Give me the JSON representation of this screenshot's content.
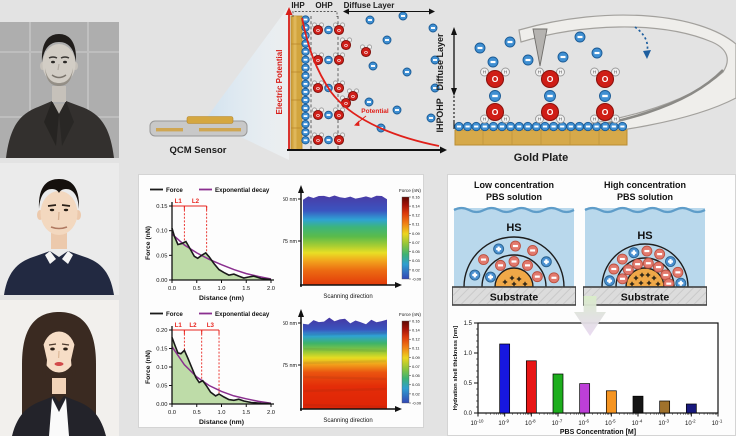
{
  "page": {
    "background": "#e3e3e3",
    "card_background": "#fdfdfd"
  },
  "portraits": [
    {
      "id": "portrait-top",
      "description": "black-and-white portrait, male researcher in dark blazer"
    },
    {
      "id": "portrait-middle",
      "description": "color portrait, male researcher in navy sweater"
    },
    {
      "id": "portrait-bottom",
      "description": "color portrait, female researcher with long dark hair"
    }
  ],
  "edl_panel": {
    "sensor_label": "QCM Sensor",
    "axis_label": "Electric Potential",
    "curve_label": "Potential",
    "zone_labels": {
      "ihp": "IHP",
      "ohp": "OHP",
      "diffuse": "Diffuse Layer"
    }
  },
  "afm_panel": {
    "depth_labels": {
      "ihp": "IHP",
      "ohp": "OHP",
      "diffuse": "Diffuse Layer"
    },
    "plate_label": "Gold Plate"
  },
  "hydration_panel": {
    "low": {
      "title_line1": "Low concentration",
      "title_line2": "PBS solution"
    },
    "high": {
      "title_line1": "High concentration",
      "title_line2": "PBS solution"
    },
    "shell_label": "HS",
    "substrate_label": "Substrate",
    "ion_colors": {
      "anion": "#e2796d",
      "anion_edge": "#b9503f",
      "cation": "#4a90d0",
      "cation_edge": "#2a628f",
      "core": "#f0a848"
    }
  },
  "chart_data": [
    {
      "id": "force-distance-top",
      "type": "line",
      "xlabel": "Distance (nm)",
      "ylabel": "Force (nN)",
      "xlim": [
        0.0,
        2.0
      ],
      "ylim": [
        0.0,
        0.15
      ],
      "xticks": [
        "0.0",
        "0.5",
        "1.0",
        "1.5",
        "2.0"
      ],
      "yticks": [
        "0.00",
        "0.05",
        "0.10",
        "0.15"
      ],
      "legend": [
        {
          "label": "Force",
          "color": "#1a1a1a"
        },
        {
          "label": "Exponential decay",
          "color": "#8a2f8f"
        }
      ],
      "layer_markers": {
        "labels": [
          "L1",
          "L2"
        ],
        "x": [
          0.25,
          0.7
        ],
        "color": "#e8251f"
      },
      "series": [
        {
          "name": "Force",
          "color": "#1a1a1a",
          "fill": "#b7d89f",
          "x": [
            0,
            0.05,
            0.12,
            0.2,
            0.28,
            0.35,
            0.45,
            0.52,
            0.6,
            0.68,
            0.75,
            0.85,
            0.95,
            1.05,
            1.15,
            1.25,
            1.35,
            1.45,
            1.55,
            1.65,
            1.8,
            2.0
          ],
          "y": [
            0.105,
            0.088,
            0.072,
            0.074,
            0.078,
            0.066,
            0.048,
            0.044,
            0.05,
            0.055,
            0.047,
            0.033,
            0.021,
            0.015,
            0.01,
            0.012,
            0.008,
            0.004,
            0.006,
            0.008,
            0.003,
            0.001
          ]
        },
        {
          "name": "Exponential decay",
          "color": "#8a2f8f",
          "x": [
            0,
            0.25,
            0.5,
            0.75,
            1.0,
            1.25,
            1.5,
            1.75,
            2.0
          ],
          "y": [
            0.093,
            0.071,
            0.055,
            0.042,
            0.031,
            0.021,
            0.013,
            0.007,
            0.002
          ]
        }
      ]
    },
    {
      "id": "force-map-top",
      "type": "heatmap",
      "xlabel": "Scanning direction",
      "y_axis_ticks": [
        "1.50 nm",
        "0.75 nm"
      ],
      "colorbar": {
        "title": "Force (nN)",
        "ticks": [
          "0.16",
          "0.14",
          "0.12",
          "0.11",
          "0.09",
          "0.07",
          "0.05",
          "0.03",
          "0.02",
          "-0.00"
        ]
      },
      "band_stops": [
        [
          0,
          "#4a3ba6"
        ],
        [
          0.17,
          "#3b55c0"
        ],
        [
          0.27,
          "#2fa3d4"
        ],
        [
          0.35,
          "#3cb47e"
        ],
        [
          0.46,
          "#5bbb4a"
        ],
        [
          0.56,
          "#a6cd33"
        ],
        [
          0.64,
          "#e8df25"
        ],
        [
          0.73,
          "#f2a51d"
        ],
        [
          0.84,
          "#ec6a12"
        ],
        [
          1,
          "#e23a0a"
        ]
      ],
      "roughness": 2
    },
    {
      "id": "force-distance-bottom",
      "type": "line",
      "xlabel": "Distance (nm)",
      "ylabel": "Force (nN)",
      "xlim": [
        0.0,
        2.0
      ],
      "ylim": [
        0.0,
        0.2
      ],
      "xticks": [
        "0.0",
        "0.5",
        "1.0",
        "1.5",
        "2.0"
      ],
      "yticks": [
        "0.00",
        "0.05",
        "0.10",
        "0.15",
        "0.20"
      ],
      "legend": [
        {
          "label": "Force",
          "color": "#1a1a1a"
        },
        {
          "label": "Exponential decay",
          "color": "#8a2f8f"
        }
      ],
      "layer_markers": {
        "labels": [
          "L1",
          "L2",
          "L3"
        ],
        "x": [
          0.25,
          0.6,
          0.95
        ],
        "color": "#e8251f"
      },
      "series": [
        {
          "name": "Force",
          "color": "#1a1a1a",
          "fill": "#b7d89f",
          "x": [
            0,
            0.06,
            0.12,
            0.18,
            0.25,
            0.32,
            0.4,
            0.48,
            0.55,
            0.62,
            0.7,
            0.78,
            0.88,
            0.95,
            1.05,
            1.15,
            1.25,
            1.35,
            1.45,
            1.6,
            1.8,
            2.0
          ],
          "y": [
            0.18,
            0.158,
            0.138,
            0.136,
            0.145,
            0.124,
            0.098,
            0.072,
            0.058,
            0.063,
            0.048,
            0.032,
            0.022,
            0.027,
            0.019,
            0.012,
            0.01,
            0.013,
            0.008,
            0.004,
            0.002,
            0.001
          ]
        },
        {
          "name": "Exponential decay",
          "color": "#8a2f8f",
          "x": [
            0,
            0.25,
            0.5,
            0.75,
            1.0,
            1.25,
            1.5,
            1.75,
            2.0
          ],
          "y": [
            0.155,
            0.106,
            0.073,
            0.05,
            0.034,
            0.022,
            0.014,
            0.007,
            0.002
          ]
        }
      ]
    },
    {
      "id": "force-map-bottom",
      "type": "heatmap",
      "xlabel": "Scanning direction",
      "y_axis_ticks": [
        "1.50 nm",
        "0.75 nm"
      ],
      "colorbar": {
        "title": "Force (nN)",
        "ticks": [
          "0.16",
          "0.14",
          "0.12",
          "0.11",
          "0.09",
          "0.07",
          "0.05",
          "0.03",
          "0.02",
          "-0.00"
        ]
      },
      "band_stops": [
        [
          0,
          "#4636a2"
        ],
        [
          0.13,
          "#3a54be"
        ],
        [
          0.2,
          "#2fa3d4"
        ],
        [
          0.28,
          "#3db36a"
        ],
        [
          0.37,
          "#93c838"
        ],
        [
          0.44,
          "#e6dc22"
        ],
        [
          0.52,
          "#f29a1a"
        ],
        [
          0.6,
          "#ea5410"
        ],
        [
          0.75,
          "#e42d08"
        ],
        [
          1,
          "#de2406"
        ]
      ],
      "roughness": 4
    },
    {
      "id": "hydration-shell-thickness",
      "type": "bar",
      "xlabel": "PBS Concentration [M]",
      "ylabel": "Hydration shell thickness [nm]",
      "ylim": [
        0,
        1.5
      ],
      "yticks": [
        "0.0",
        "0.5",
        "1.0",
        "1.5"
      ],
      "x_decades": [
        -10,
        -9,
        -8,
        -7,
        -6,
        -5,
        -4,
        -3,
        -2,
        -1
      ],
      "bars": [
        {
          "x_exponent": -9,
          "value": 1.15,
          "color": "#1717e0"
        },
        {
          "x_exponent": -8,
          "value": 0.87,
          "color": "#e81616"
        },
        {
          "x_exponent": -7,
          "value": 0.65,
          "color": "#1dae1d"
        },
        {
          "x_exponent": -6,
          "value": 0.49,
          "color": "#bd3fd8"
        },
        {
          "x_exponent": -5,
          "value": 0.37,
          "color": "#f59421"
        },
        {
          "x_exponent": -4,
          "value": 0.28,
          "color": "#151515"
        },
        {
          "x_exponent": -3,
          "value": 0.2,
          "color": "#a0722c"
        },
        {
          "x_exponent": -2,
          "value": 0.15,
          "color": "#18197d"
        }
      ]
    }
  ]
}
